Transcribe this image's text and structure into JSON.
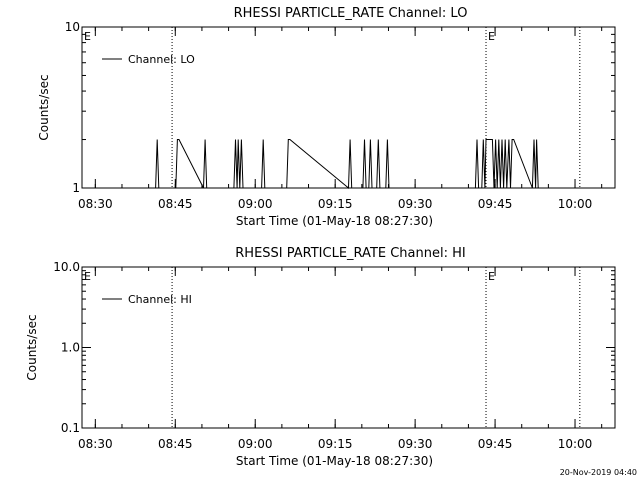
{
  "footer_timestamp": "20-Nov-2019 04:40",
  "chart_data": [
    {
      "type": "line",
      "title": "RHESSI PARTICLE_RATE Channel: LO",
      "xlabel": "Start Time (01-May-18 08:27:30)",
      "ylabel": "Counts/sec",
      "y_scale": "log",
      "ylim": [
        1,
        10
      ],
      "y_ticks": [
        {
          "value": 1,
          "label": "1"
        },
        {
          "value": 10,
          "label": "10"
        }
      ],
      "x_range_minutes": [
        0,
        100
      ],
      "x_ticks": [
        {
          "t": 2.5,
          "label": "08:30"
        },
        {
          "t": 17.5,
          "label": "08:45"
        },
        {
          "t": 32.5,
          "label": "09:00"
        },
        {
          "t": 47.5,
          "label": "09:15"
        },
        {
          "t": 62.5,
          "label": "09:30"
        },
        {
          "t": 77.5,
          "label": "09:45"
        },
        {
          "t": 92.5,
          "label": "10:00"
        }
      ],
      "event_lines_minutes": [
        16.9,
        75.8,
        93.4
      ],
      "event_markers": [
        {
          "t": 0,
          "label": "E"
        },
        {
          "t": 75.8,
          "label": "E"
        }
      ],
      "legend": {
        "entry": "Channel: LO",
        "placement": "top-left"
      },
      "series": [
        {
          "name": "Channel: LO",
          "points": [
            [
              1.5,
              1
            ],
            [
              13.8,
              1
            ],
            [
              14.1,
              2
            ],
            [
              14.4,
              1
            ],
            [
              17.6,
              1
            ],
            [
              17.9,
              2
            ],
            [
              18.2,
              2
            ],
            [
              22.8,
              1
            ],
            [
              23.1,
              2
            ],
            [
              23.4,
              1
            ],
            [
              28.5,
              1
            ],
            [
              28.8,
              2
            ],
            [
              29.1,
              1
            ],
            [
              29.3,
              2
            ],
            [
              29.6,
              1
            ],
            [
              29.9,
              2
            ],
            [
              30.2,
              1
            ],
            [
              33.7,
              1
            ],
            [
              34.0,
              2
            ],
            [
              34.3,
              1
            ],
            [
              38.4,
              1
            ],
            [
              38.7,
              2
            ],
            [
              39.0,
              2
            ],
            [
              50.0,
              1
            ],
            [
              50.3,
              2
            ],
            [
              50.6,
              1
            ],
            [
              52.7,
              1
            ],
            [
              53.0,
              2
            ],
            [
              53.3,
              1
            ],
            [
              53.8,
              1
            ],
            [
              54.1,
              2
            ],
            [
              54.4,
              1
            ],
            [
              55.3,
              1
            ],
            [
              55.6,
              2
            ],
            [
              55.9,
              1
            ],
            [
              57.0,
              1
            ],
            [
              57.3,
              2
            ],
            [
              57.6,
              1
            ],
            [
              73.8,
              1
            ],
            [
              74.1,
              2
            ],
            [
              74.4,
              1
            ],
            [
              75.0,
              1
            ],
            [
              75.3,
              2
            ],
            [
              75.6,
              1
            ],
            [
              75.8,
              2
            ],
            [
              77.0,
              2
            ],
            [
              77.3,
              1
            ],
            [
              77.6,
              2
            ],
            [
              77.9,
              1
            ],
            [
              78.2,
              2
            ],
            [
              78.5,
              1
            ],
            [
              78.8,
              2
            ],
            [
              79.1,
              1
            ],
            [
              79.4,
              2
            ],
            [
              79.7,
              1
            ],
            [
              80.1,
              2
            ],
            [
              80.4,
              1
            ],
            [
              80.7,
              2
            ],
            [
              81.0,
              2
            ],
            [
              84.5,
              1
            ],
            [
              84.8,
              2
            ],
            [
              85.1,
              1
            ],
            [
              85.3,
              2
            ],
            [
              85.6,
              1
            ],
            [
              93.0,
              1
            ]
          ]
        }
      ]
    },
    {
      "type": "line",
      "title": "RHESSI PARTICLE_RATE Channel: HI",
      "xlabel": "Start Time (01-May-18 08:27:30)",
      "ylabel": "Counts/sec",
      "y_scale": "log",
      "ylim": [
        0.1,
        10
      ],
      "y_ticks": [
        {
          "value": 0.1,
          "label": "0.1"
        },
        {
          "value": 1,
          "label": "1.0"
        },
        {
          "value": 10,
          "label": "10.0"
        }
      ],
      "x_range_minutes": [
        0,
        100
      ],
      "x_ticks": [
        {
          "t": 2.5,
          "label": "08:30"
        },
        {
          "t": 17.5,
          "label": "08:45"
        },
        {
          "t": 32.5,
          "label": "09:00"
        },
        {
          "t": 47.5,
          "label": "09:15"
        },
        {
          "t": 62.5,
          "label": "09:30"
        },
        {
          "t": 77.5,
          "label": "09:45"
        },
        {
          "t": 92.5,
          "label": "10:00"
        }
      ],
      "event_lines_minutes": [
        16.9,
        75.8,
        93.4
      ],
      "event_markers": [
        {
          "t": 0,
          "label": "E"
        },
        {
          "t": 75.8,
          "label": "E"
        }
      ],
      "legend": {
        "entry": "Channel: HI",
        "placement": "top-left"
      },
      "series": [
        {
          "name": "Channel: HI",
          "points": []
        }
      ]
    }
  ]
}
